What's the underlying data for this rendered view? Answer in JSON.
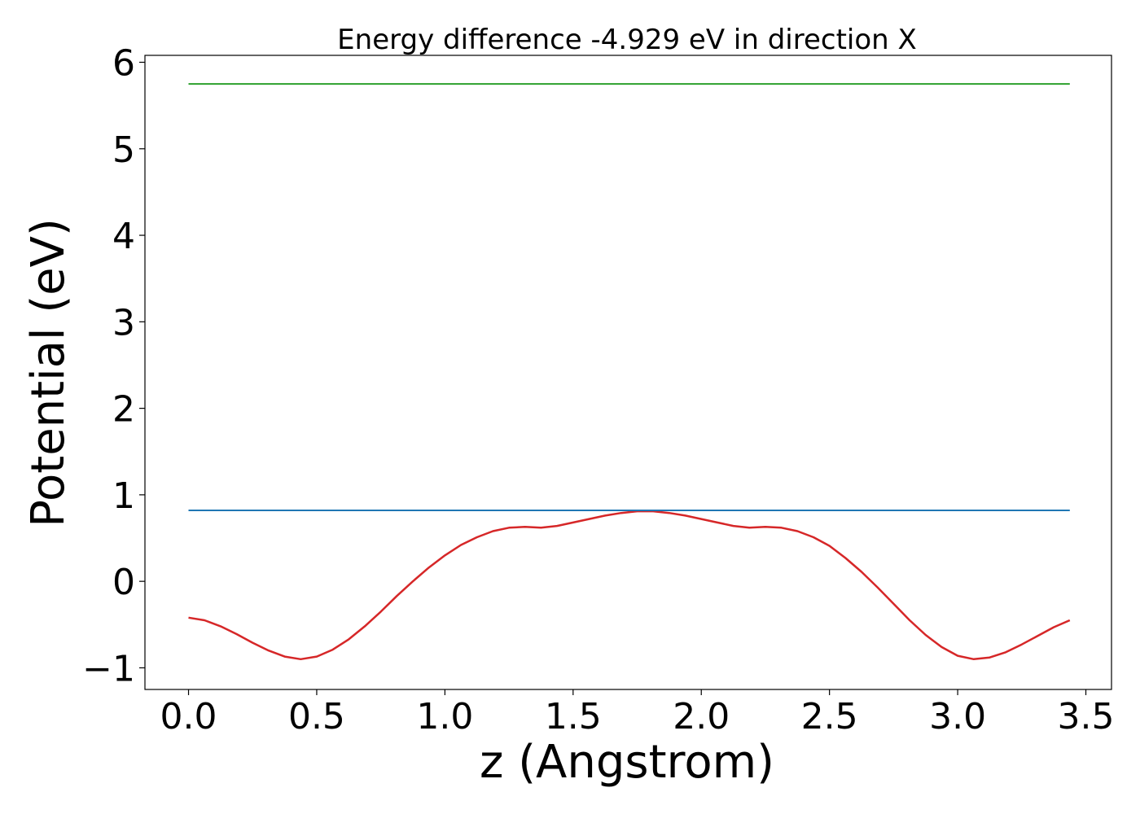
{
  "chart_data": {
    "type": "line",
    "title": "Energy difference -4.929 eV in direction X",
    "xlabel": "z (Angstrom)",
    "ylabel": "Potential (eV)",
    "xlim": [
      -0.17,
      3.6
    ],
    "ylim": [
      -1.25,
      6.08
    ],
    "xticks": [
      0.0,
      0.5,
      1.0,
      1.5,
      2.0,
      2.5,
      3.0,
      3.5
    ],
    "xtick_labels": [
      "0.0",
      "0.5",
      "1.0",
      "1.5",
      "2.0",
      "2.5",
      "3.0",
      "3.5"
    ],
    "yticks": [
      -1,
      0,
      1,
      2,
      3,
      4,
      5,
      6
    ],
    "ytick_labels": [
      "−1",
      "0",
      "1",
      "2",
      "3",
      "4",
      "5",
      "6"
    ],
    "grid": false,
    "legend": "none",
    "series": [
      {
        "color": "#d62728",
        "x": [
          0.0,
          0.0625,
          0.125,
          0.1875,
          0.25,
          0.3125,
          0.375,
          0.4375,
          0.5,
          0.5625,
          0.625,
          0.6875,
          0.75,
          0.8125,
          0.875,
          0.9375,
          1.0,
          1.0625,
          1.125,
          1.1875,
          1.25,
          1.3125,
          1.375,
          1.4375,
          1.5,
          1.5625,
          1.625,
          1.6875,
          1.75,
          1.8125,
          1.875,
          1.9375,
          2.0,
          2.0625,
          2.125,
          2.1875,
          2.25,
          2.3125,
          2.375,
          2.4375,
          2.5,
          2.5625,
          2.625,
          2.6875,
          2.75,
          2.8125,
          2.875,
          2.9375,
          3.0,
          3.0625,
          3.125,
          3.1875,
          3.25,
          3.3125,
          3.375,
          3.4375
        ],
        "y": [
          -0.42,
          -0.45,
          -0.52,
          -0.61,
          -0.71,
          -0.8,
          -0.87,
          -0.9,
          -0.87,
          -0.79,
          -0.67,
          -0.52,
          -0.35,
          -0.17,
          0.0,
          0.16,
          0.3,
          0.42,
          0.51,
          0.58,
          0.62,
          0.63,
          0.62,
          0.64,
          0.68,
          0.72,
          0.76,
          0.79,
          0.81,
          0.81,
          0.79,
          0.76,
          0.72,
          0.68,
          0.64,
          0.62,
          0.63,
          0.62,
          0.58,
          0.51,
          0.41,
          0.27,
          0.11,
          -0.07,
          -0.26,
          -0.45,
          -0.62,
          -0.76,
          -0.86,
          -0.9,
          -0.88,
          -0.82,
          -0.73,
          -0.63,
          -0.53,
          -0.45
        ]
      },
      {
        "color": "#1f77b4",
        "x": [
          0.0,
          3.4375
        ],
        "y": [
          0.82,
          0.82
        ]
      },
      {
        "color": "#2ca02c",
        "x": [
          0.0,
          3.4375
        ],
        "y": [
          5.75,
          5.75
        ]
      }
    ]
  }
}
